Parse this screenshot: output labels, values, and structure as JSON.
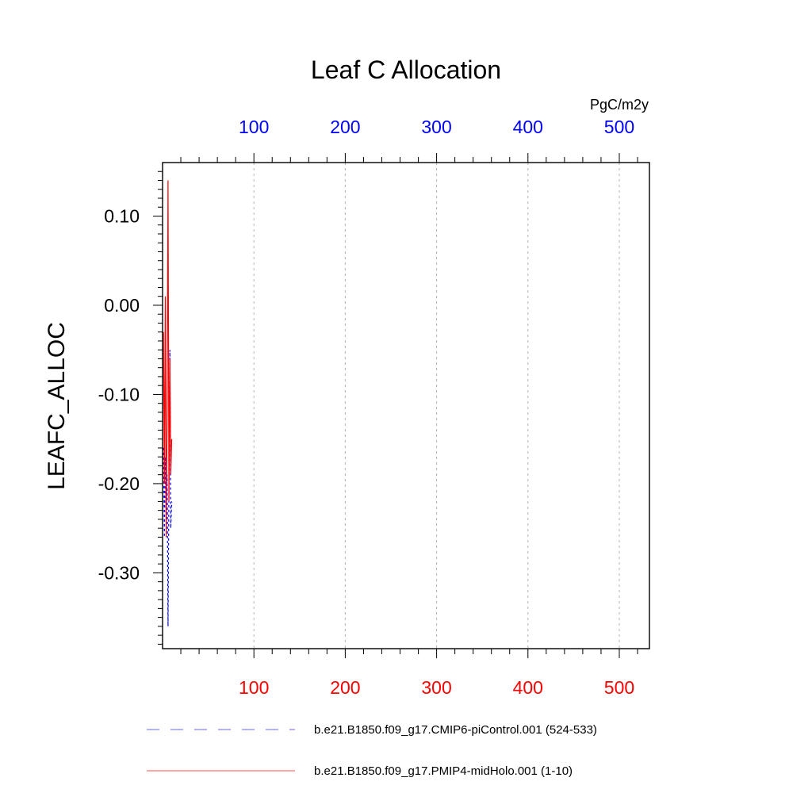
{
  "chart_data": {
    "type": "line",
    "title": "Leaf C Allocation",
    "ylabel": "LEAFC_ALLOC",
    "top_axis_unit": "PgC/m2y",
    "xlim": [
      0,
      533
    ],
    "ylim": [
      -0.385,
      0.16
    ],
    "x_ticks": [
      100,
      200,
      300,
      400,
      500
    ],
    "y_ticks": [
      {
        "value": 0.1,
        "label": "0.10"
      },
      {
        "value": 0.0,
        "label": "0.00"
      },
      {
        "value": -0.1,
        "label": "-0.10"
      },
      {
        "value": -0.2,
        "label": "-0.20"
      },
      {
        "value": -0.3,
        "label": "-0.30"
      }
    ],
    "grid": "vertical dotted",
    "bottom_tick_color": "#ff0000",
    "top_tick_color": "#0000ff",
    "series": [
      {
        "name": "b.e21.B1850.f09_g17.CMIP6-piControl.001 (524-533)",
        "color": "#0000ff",
        "dash": "dashed",
        "x": [
          1,
          2,
          3,
          4,
          5,
          6,
          7,
          8,
          9,
          10
        ],
        "y": [
          -0.16,
          -0.26,
          -0.17,
          -0.24,
          -0.19,
          -0.36,
          -0.2,
          -0.05,
          -0.25,
          -0.22
        ]
      },
      {
        "name": "b.e21.B1850.f09_g17.PMIP4-midHolo.001 (1-10)",
        "color": "#ff0000",
        "dash": "solid",
        "x": [
          1,
          2,
          3,
          4,
          5,
          6,
          7,
          8,
          9,
          10
        ],
        "y": [
          -0.03,
          -0.2,
          0.01,
          -0.26,
          -0.12,
          0.14,
          -0.22,
          -0.06,
          -0.19,
          -0.15
        ]
      }
    ]
  }
}
